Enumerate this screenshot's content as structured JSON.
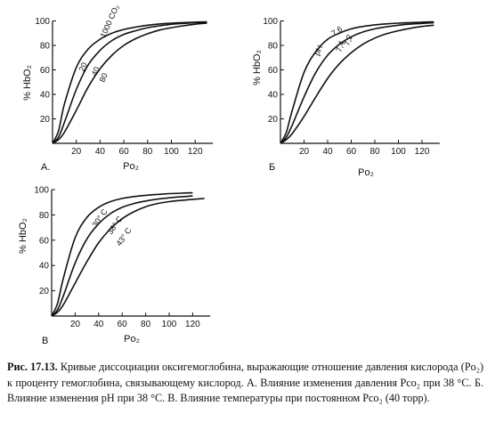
{
  "caption": {
    "figure_number": "Рис. 17.13.",
    "text": "Кривые диссоциации оксигемоглобина, выражающие отношение давления кислорода (Po₂) к проценту гемоглобина, связывающему кислород. А. Влияние изменения давления Pco₂ при 38 °С. Б. Влияние изменения рН при 38 °С. В. Влияние температуры при постоянном Pco₂ (40 торр)."
  },
  "chart_data": [
    {
      "type": "line",
      "panel_label": "А.",
      "xlabel": "Po₂",
      "ylabel": "% HbO₂",
      "xlim": [
        0,
        140
      ],
      "ylim": [
        0,
        100
      ],
      "x_ticks": [
        "0",
        "20",
        "40",
        "60",
        "80",
        "100",
        "120"
      ],
      "y_ticks": [
        "0",
        "20",
        "40",
        "60",
        "80",
        "100"
      ],
      "curve_labels": [
        "20",
        "1000 CO₂",
        "40",
        "80"
      ],
      "series": [
        {
          "x": [
            0,
            5,
            10,
            20,
            30,
            40,
            50,
            60,
            70,
            80,
            90,
            100,
            110,
            120,
            130
          ],
          "values": [
            0,
            10,
            32,
            62,
            77,
            85,
            90,
            93,
            95,
            96.5,
            97.5,
            98.2,
            98.6,
            99,
            99.2
          ]
        },
        {
          "x": [
            0,
            5,
            10,
            20,
            30,
            40,
            50,
            60,
            70,
            80,
            90,
            100,
            110,
            120,
            130
          ],
          "values": [
            0,
            5,
            17,
            44,
            64,
            76,
            84,
            89,
            92,
            94.5,
            96,
            97.3,
            98,
            98.6,
            99
          ]
        },
        {
          "x": [
            0,
            5,
            10,
            20,
            30,
            40,
            50,
            60,
            70,
            80,
            90,
            100,
            110,
            120,
            130
          ],
          "values": [
            0,
            3,
            9,
            27,
            46,
            61,
            72,
            80,
            85.5,
            89.5,
            92.5,
            94.5,
            96,
            97.3,
            98.2
          ]
        }
      ]
    },
    {
      "type": "line",
      "panel_label": "Б",
      "xlabel": "Po₂",
      "ylabel": "% HbO₂",
      "xlim": [
        0,
        140
      ],
      "ylim": [
        0,
        100
      ],
      "x_ticks": [
        "0",
        "20",
        "40",
        "60",
        "80",
        "100",
        "120"
      ],
      "y_ticks": [
        "0",
        "20",
        "40",
        "60",
        "80",
        "100"
      ],
      "curve_labels": [
        "pH",
        "7,6",
        "7,4",
        "7,2"
      ],
      "series": [
        {
          "x": [
            0,
            5,
            10,
            20,
            30,
            40,
            50,
            60,
            70,
            80,
            90,
            100,
            110,
            120,
            130
          ],
          "values": [
            0,
            9,
            27,
            58,
            75,
            85,
            90,
            93.5,
            95.5,
            96.8,
            97.6,
            98.2,
            98.6,
            99,
            99.2
          ]
        },
        {
          "x": [
            0,
            5,
            10,
            20,
            30,
            40,
            50,
            60,
            70,
            80,
            90,
            100,
            110,
            120,
            130
          ],
          "values": [
            0,
            5,
            15,
            38,
            58,
            72,
            81,
            87,
            91,
            93.5,
            95.2,
            96.5,
            97.4,
            98,
            98.5
          ]
        },
        {
          "x": [
            0,
            5,
            10,
            20,
            30,
            40,
            50,
            60,
            70,
            80,
            90,
            100,
            110,
            120,
            130
          ],
          "values": [
            0,
            3,
            8,
            22,
            38,
            53,
            65,
            74,
            81,
            86,
            89.5,
            92,
            94,
            95.5,
            96.5
          ]
        }
      ]
    },
    {
      "type": "line",
      "panel_label": "В",
      "xlabel": "Po₂",
      "ylabel": "% HbO₂",
      "xlim": [
        0,
        140
      ],
      "ylim": [
        0,
        100
      ],
      "x_ticks": [
        "0",
        "20",
        "40",
        "60",
        "80",
        "100",
        "120"
      ],
      "y_ticks": [
        "0",
        "20",
        "40",
        "60",
        "80",
        "100"
      ],
      "curve_labels": [
        "30° C",
        "38° C",
        "43° C"
      ],
      "series": [
        {
          "x": [
            0,
            5,
            10,
            20,
            30,
            40,
            50,
            60,
            70,
            80,
            90,
            100,
            110,
            120
          ],
          "values": [
            0,
            10,
            30,
            62,
            78,
            86,
            90.5,
            93,
            94.5,
            95.5,
            96.2,
            96.8,
            97.2,
            97.5
          ]
        },
        {
          "x": [
            0,
            5,
            10,
            20,
            30,
            40,
            50,
            60,
            70,
            80,
            90,
            100,
            110,
            120
          ],
          "values": [
            0,
            5,
            16,
            42,
            61,
            73,
            81,
            86,
            89,
            91,
            92.5,
            93.5,
            94.3,
            95
          ]
        },
        {
          "x": [
            0,
            5,
            10,
            20,
            30,
            40,
            50,
            60,
            70,
            80,
            90,
            100,
            110,
            120,
            130
          ],
          "values": [
            0,
            3,
            9,
            26,
            43,
            58,
            69,
            77,
            82.5,
            86.5,
            89,
            90.5,
            91.5,
            92.3,
            93
          ]
        }
      ]
    }
  ]
}
